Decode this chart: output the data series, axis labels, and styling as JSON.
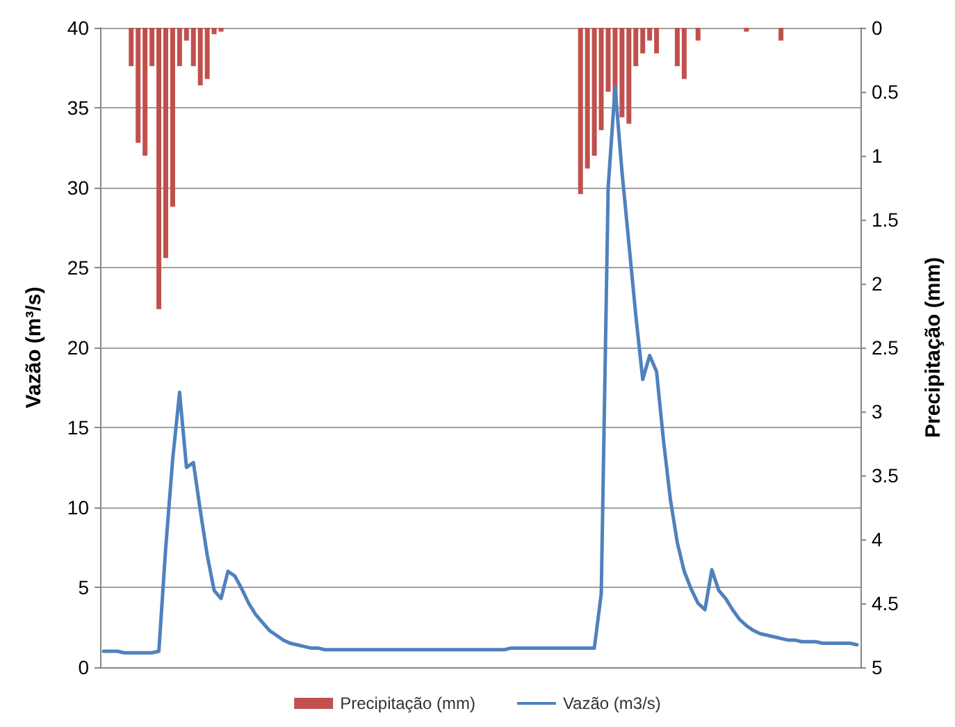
{
  "chart_data": {
    "type": "line",
    "ylabel": "Vazão (m³/s)",
    "y2label": "Precipitação (mm)",
    "categories": [
      null,
      null,
      null,
      null,
      null,
      null,
      null,
      null,
      null,
      null,
      null,
      null,
      null,
      null,
      null,
      null,
      null,
      null,
      null,
      null,
      null,
      null,
      null,
      null,
      null,
      null,
      null,
      null,
      null,
      null,
      null,
      null,
      null,
      null,
      null,
      null,
      null,
      null,
      null,
      null,
      null,
      null,
      null,
      null,
      null,
      null,
      null,
      null,
      null,
      null,
      null,
      null,
      null,
      null,
      null,
      null,
      null,
      null,
      null,
      null,
      null,
      null,
      null,
      null,
      null,
      null,
      null,
      null,
      null,
      null,
      null,
      null,
      null,
      null,
      null,
      null,
      null,
      null,
      null,
      null,
      null,
      null,
      null,
      null,
      null,
      null,
      null,
      null,
      null,
      null,
      null,
      null,
      null,
      null,
      null,
      null,
      null,
      null,
      null,
      null,
      null,
      null,
      null,
      null,
      null,
      null,
      null,
      null,
      null,
      null
    ],
    "series": [
      {
        "name": "Precipitação (mm)",
        "type": "bar",
        "axis": "y2",
        "color": "#c0504d",
        "values": [
          0,
          0,
          0,
          0,
          0.3,
          0.9,
          1.0,
          0.3,
          2.2,
          1.8,
          1.4,
          0.3,
          0.1,
          0.3,
          0.45,
          0.4,
          0.05,
          0.03,
          0,
          0,
          0,
          0,
          0,
          0,
          0,
          0,
          0,
          0,
          0,
          0,
          0,
          0,
          0,
          0,
          0,
          0,
          0,
          0,
          0,
          0,
          0,
          0,
          0,
          0,
          0,
          0,
          0,
          0,
          0,
          0,
          0,
          0,
          0,
          0,
          0,
          0,
          0,
          0,
          0,
          0,
          0,
          0,
          0,
          0,
          0,
          0,
          0,
          0,
          0,
          1.3,
          1.1,
          1.0,
          0.8,
          0.5,
          0.6,
          0.7,
          0.75,
          0.3,
          0.2,
          0.1,
          0.2,
          0,
          0,
          0.3,
          0.4,
          0,
          0.1,
          0,
          0,
          0,
          0,
          0,
          0,
          0.03,
          0,
          0,
          0,
          0,
          0.1,
          0,
          0,
          0,
          0,
          0,
          0,
          0,
          0,
          0,
          0,
          0
        ]
      },
      {
        "name": "Vazão (m3/s)",
        "color": "#4f81bd",
        "values": [
          1.0,
          1.0,
          1.0,
          0.9,
          0.9,
          0.9,
          0.9,
          0.9,
          1.0,
          7.5,
          13,
          17.2,
          12.5,
          12.8,
          9.8,
          7,
          4.8,
          4.3,
          6.0,
          5.7,
          4.9,
          4.0,
          3.3,
          2.8,
          2.3,
          2.0,
          1.7,
          1.5,
          1.4,
          1.3,
          1.2,
          1.2,
          1.1,
          1.1,
          1.1,
          1.1,
          1.1,
          1.1,
          1.1,
          1.1,
          1.1,
          1.1,
          1.1,
          1.1,
          1.1,
          1.1,
          1.1,
          1.1,
          1.1,
          1.1,
          1.1,
          1.1,
          1.1,
          1.1,
          1.1,
          1.1,
          1.1,
          1.1,
          1.1,
          1.2,
          1.2,
          1.2,
          1.2,
          1.2,
          1.2,
          1.2,
          1.2,
          1.2,
          1.2,
          1.2,
          1.2,
          1.2,
          4.6,
          30,
          36.3,
          31,
          26.5,
          22,
          18,
          19.5,
          18.5,
          14.2,
          10.5,
          7.8,
          6,
          4.9,
          4.0,
          3.6,
          6.1,
          4.8,
          4.3,
          3.6,
          3.0,
          2.6,
          2.3,
          2.1,
          2.0,
          1.9,
          1.8,
          1.7,
          1.7,
          1.6,
          1.6,
          1.6,
          1.5,
          1.5,
          1.5,
          1.5,
          1.5,
          1.4
        ]
      }
    ],
    "ylim": [
      0,
      40
    ],
    "yticks": [
      0,
      5,
      10,
      15,
      20,
      25,
      30,
      35,
      40
    ],
    "y2lim": [
      5,
      0
    ],
    "y2ticks": [
      0,
      0.5,
      1,
      1.5,
      2,
      2.5,
      3,
      3.5,
      4,
      4.5,
      5
    ],
    "grid": "y",
    "legend": "bottom",
    "tick_labels": "y",
    "marker": "none",
    "line_style": "solid"
  }
}
